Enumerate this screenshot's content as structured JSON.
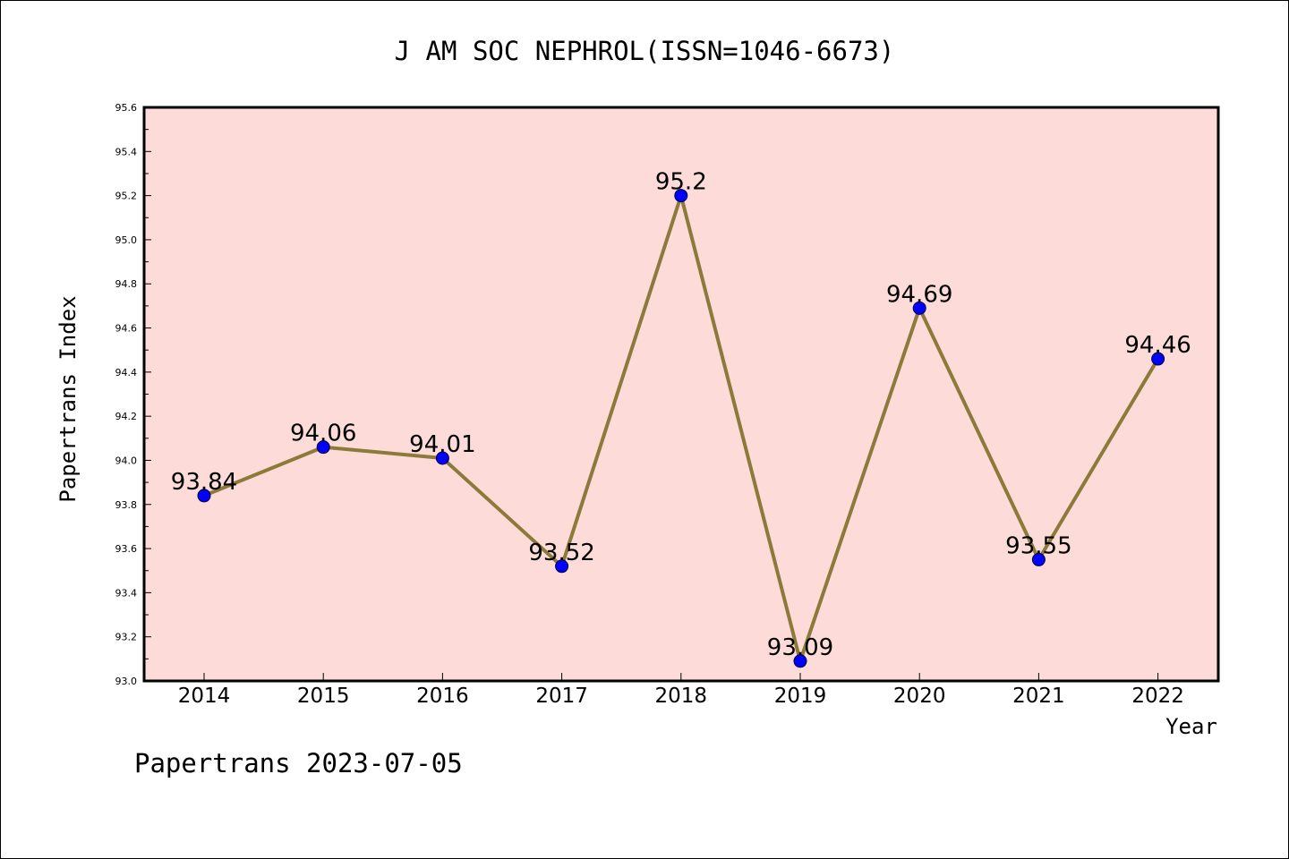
{
  "chart_data": {
    "type": "line",
    "title": "J AM SOC NEPHROL(ISSN=1046-6673)",
    "xlabel": "Year",
    "ylabel": "Papertrans Index",
    "footer": "Papertrans 2023-07-05",
    "categories": [
      "2014",
      "2015",
      "2016",
      "2017",
      "2018",
      "2019",
      "2020",
      "2021",
      "2022"
    ],
    "series": [
      {
        "values": [
          93.84,
          94.06,
          94.01,
          93.52,
          95.2,
          93.09,
          94.69,
          93.55,
          94.46
        ],
        "data_labels": [
          "93.84",
          "94.06",
          "94.01",
          "93.52",
          "95.2",
          "93.09",
          "94.69",
          "93.55",
          "94.46"
        ]
      }
    ],
    "ylim": [
      93.0,
      95.6
    ],
    "yticks": [
      "93.0",
      "93.2",
      "93.4",
      "93.6",
      "93.8",
      "94.0",
      "94.2",
      "94.4",
      "94.6",
      "94.8",
      "95.0",
      "95.2",
      "95.4",
      "95.6"
    ],
    "grid": false,
    "colors": {
      "plot_background": "#fddbd8",
      "line": "#8c7a3a",
      "marker": "#0000ff"
    }
  }
}
